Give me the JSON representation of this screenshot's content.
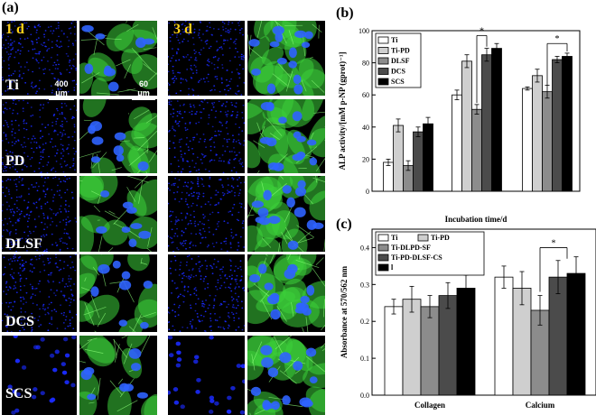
{
  "panel_a": {
    "label": "(a)",
    "day_labels": [
      "1 d",
      "3 d"
    ],
    "rows": [
      "Ti",
      "PD",
      "DLSF",
      "DCS",
      "SCS"
    ],
    "scale_bars": [
      "400 μm",
      "60 μm"
    ],
    "colors": {
      "nuclei": "#1a2bff",
      "actin": "#3ccf3a",
      "background": "#000000",
      "day_text": "#ffd21a"
    }
  },
  "panel_b": {
    "label": "(b)",
    "significance": [
      "*",
      "*"
    ]
  },
  "panel_c": {
    "label": "(c)",
    "significance": [
      "*"
    ]
  },
  "chart_data": [
    {
      "type": "bar",
      "id": "b",
      "title": "",
      "xlabel": "Incubation time/d",
      "ylabel": "ALP activity/[mM p-NP (gprot)⁻¹]",
      "ylim": [
        0,
        100
      ],
      "yticks": [
        0,
        20,
        40,
        60,
        80,
        100
      ],
      "categories": [
        "",
        "",
        ""
      ],
      "legend_position": "top-left",
      "series": [
        {
          "name": "Ti",
          "color": "#ffffff",
          "values": [
            18,
            60,
            64
          ],
          "errors": [
            2,
            3,
            1
          ]
        },
        {
          "name": "Ti-PD",
          "color": "#cfcfcf",
          "values": [
            41,
            81,
            72
          ],
          "errors": [
            4,
            4,
            4
          ]
        },
        {
          "name": "DLSF",
          "color": "#8c8c8c",
          "values": [
            16,
            51,
            62
          ],
          "errors": [
            3,
            3,
            4
          ]
        },
        {
          "name": "DCS",
          "color": "#4b4b4b",
          "values": [
            37,
            85,
            82
          ],
          "errors": [
            3,
            4,
            2
          ]
        },
        {
          "name": "SCS",
          "color": "#000000",
          "values": [
            42,
            89,
            84
          ],
          "errors": [
            4,
            3,
            2
          ]
        }
      ]
    },
    {
      "type": "bar",
      "id": "c",
      "title": "",
      "xlabel": "",
      "ylabel": "Absorbance at 570/562 nm",
      "ylim": [
        0,
        0.45
      ],
      "yticks": [
        0.0,
        0.1,
        0.2,
        0.3,
        0.4
      ],
      "categories": [
        "Collagen",
        "Calcium"
      ],
      "legend_position": "top-left",
      "series": [
        {
          "name": "Ti",
          "color": "#ffffff",
          "values": [
            0.24,
            0.32
          ],
          "errors": [
            0.02,
            0.03
          ]
        },
        {
          "name": "Ti-PD",
          "color": "#cfcfcf",
          "values": [
            0.26,
            0.29
          ],
          "errors": [
            0.035,
            0.045
          ]
        },
        {
          "name": "Ti-DLPD-SF",
          "color": "#8c8c8c",
          "values": [
            0.24,
            0.23
          ],
          "errors": [
            0.03,
            0.04
          ]
        },
        {
          "name": "Ti-PD-DLSF-CS",
          "color": "#4b4b4b",
          "values": [
            0.27,
            0.32
          ],
          "errors": [
            0.035,
            0.045
          ]
        },
        {
          "name": "l",
          "color": "#000000",
          "values": [
            0.29,
            0.33
          ],
          "errors": [
            0.035,
            0.045
          ]
        }
      ]
    }
  ]
}
